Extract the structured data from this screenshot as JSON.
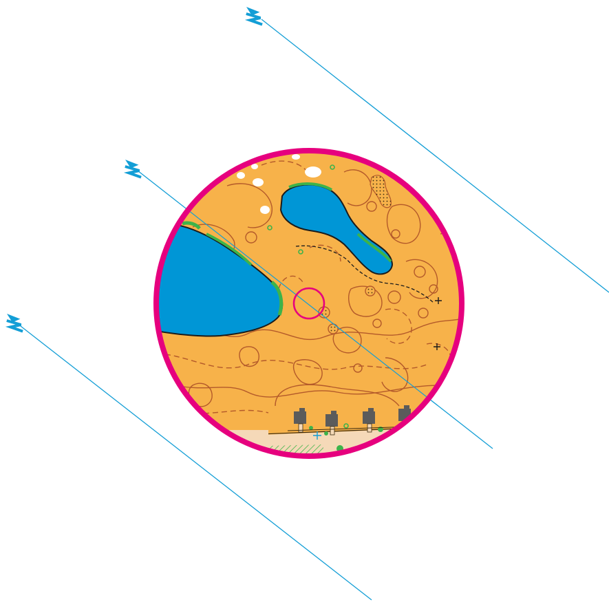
{
  "map": {
    "colors": {
      "open_land": "#f7b24a",
      "water": "#0096d6",
      "water_edge": "#1b1b1b",
      "contour": "#b3592a",
      "course_ring": "#e6007e",
      "control_circle": "#e6007e",
      "north_lines": "#139ed6",
      "vegetation": "#3db34a",
      "rock_white": "#ffffff",
      "building": "#5b5b5b",
      "paved": "#f5d9b8",
      "track": "#1b1b1b"
    },
    "north_arrows": [
      {
        "name": "north-arrow-1",
        "icon": "north-arrow-icon"
      },
      {
        "name": "north-arrow-2",
        "icon": "north-arrow-icon"
      },
      {
        "name": "north-arrow-3",
        "icon": "north-arrow-icon"
      }
    ],
    "features": {
      "lakes": [
        "lake-west",
        "lake-north"
      ],
      "buildings": 4,
      "boulders": 3,
      "cross_markers": 3,
      "control_circle": "control-circle"
    }
  }
}
